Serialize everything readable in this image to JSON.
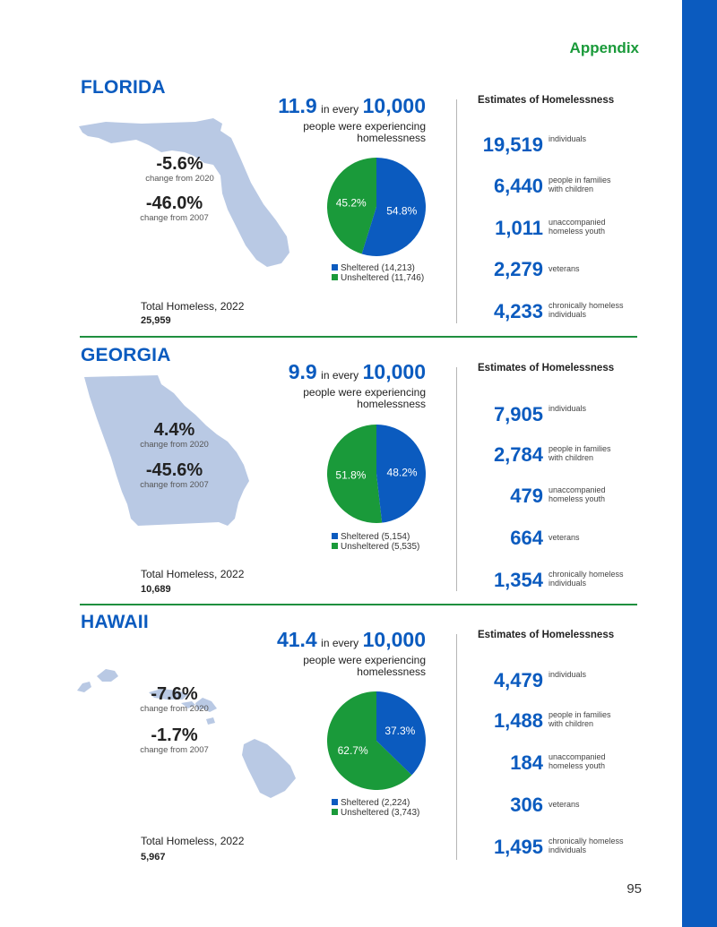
{
  "appendix": "Appendix",
  "page_number": "95",
  "colors": {
    "blue": "#0b5bbf",
    "green": "#1a9a3a",
    "map": "#b9c9e4"
  },
  "estimates_title": "Estimates of Homelessness",
  "total_label": "Total Homeless, 2022",
  "change_2020_label": "change from 2020",
  "change_2007_label": "change from 2007",
  "in_every": "in every",
  "denominator": "10,000",
  "rate_desc_1": "people were experiencing",
  "rate_desc_2": "homelessness",
  "est_labels": {
    "individuals": "individuals",
    "families_1": "people in families",
    "families_2": "with children",
    "youth_1": "unaccompanied",
    "youth_2": "homeless youth",
    "veterans": "veterans",
    "chronic_1": "chronically homeless",
    "chronic_2": "individuals"
  },
  "states": [
    {
      "name": "FLORIDA",
      "rate": "11.9",
      "change_2020": "-5.6%",
      "change_2007": "-46.0%",
      "total": "25,959",
      "pie": {
        "sheltered_pct": 54.8,
        "unsheltered_pct": 45.2,
        "sheltered_label": "54.8%",
        "unsheltered_label": "45.2%"
      },
      "legend_sheltered": "Sheltered (14,213)",
      "legend_unsheltered": "Unsheltered (11,746)",
      "estimates": {
        "individuals": "19,519",
        "families": "6,440",
        "youth": "1,011",
        "veterans": "2,279",
        "chronic": "4,233"
      }
    },
    {
      "name": "GEORGIA",
      "rate": "9.9",
      "change_2020": "4.4%",
      "change_2007": "-45.6%",
      "total": "10,689",
      "pie": {
        "sheltered_pct": 48.2,
        "unsheltered_pct": 51.8,
        "sheltered_label": "48.2%",
        "unsheltered_label": "51.8%"
      },
      "legend_sheltered": "Sheltered (5,154)",
      "legend_unsheltered": "Unsheltered (5,535)",
      "estimates": {
        "individuals": "7,905",
        "families": "2,784",
        "youth": "479",
        "veterans": "664",
        "chronic": "1,354"
      }
    },
    {
      "name": "HAWAII",
      "rate": "41.4",
      "change_2020": "-7.6%",
      "change_2007": "-1.7%",
      "total": "5,967",
      "pie": {
        "sheltered_pct": 37.3,
        "unsheltered_pct": 62.7,
        "sheltered_label": "37.3%",
        "unsheltered_label": "62.7%"
      },
      "legend_sheltered": "Sheltered (2,224)",
      "legend_unsheltered": "Unsheltered (3,743)",
      "estimates": {
        "individuals": "4,479",
        "families": "1,488",
        "youth": "184",
        "veterans": "306",
        "chronic": "1,495"
      }
    }
  ]
}
